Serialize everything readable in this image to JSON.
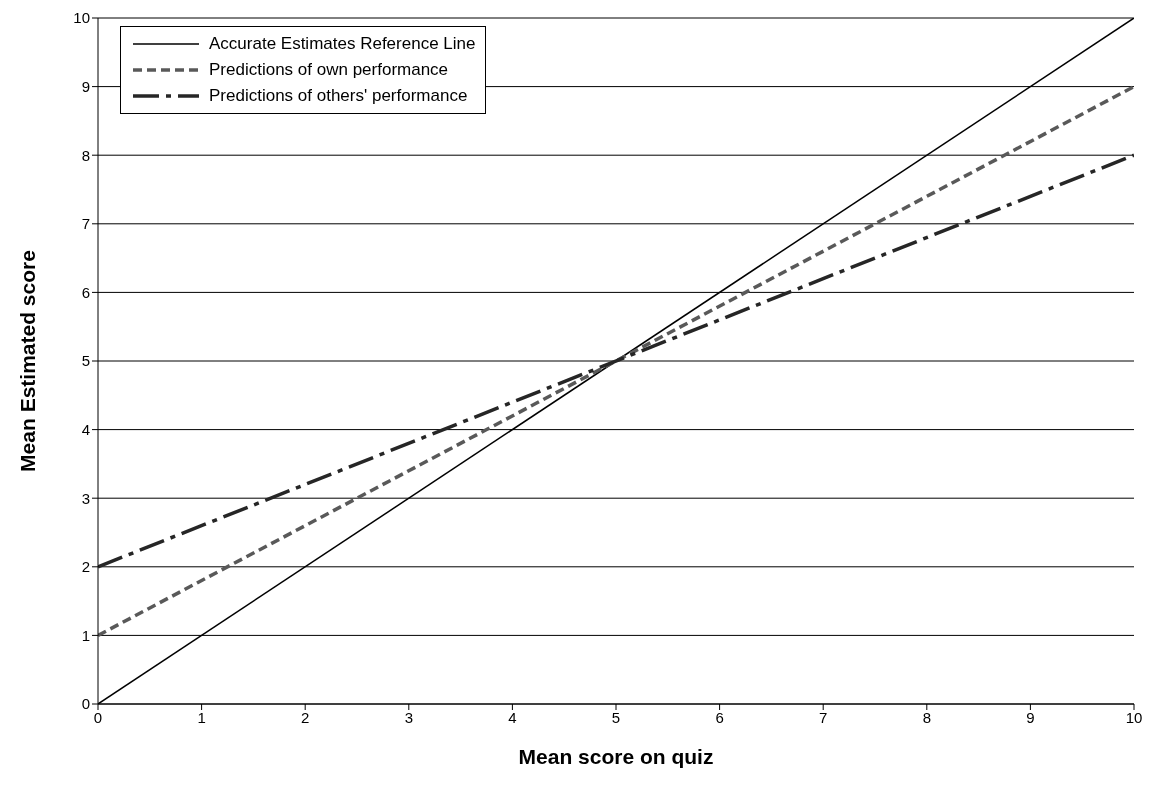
{
  "chart_data": {
    "type": "line",
    "xlabel": "Mean score on quiz",
    "ylabel": "Mean Estimated score",
    "xlim": [
      0,
      10
    ],
    "ylim": [
      0,
      10
    ],
    "xticks": [
      0,
      1,
      2,
      3,
      4,
      5,
      6,
      7,
      8,
      9,
      10
    ],
    "yticks": [
      0,
      1,
      2,
      3,
      4,
      5,
      6,
      7,
      8,
      9,
      10
    ],
    "grid": "y",
    "legend": "top left",
    "marker": "none",
    "x": [
      0,
      10
    ],
    "series": [
      {
        "name": "Accurate Estimates Reference Line",
        "color": "#000000",
        "line_style": "solid",
        "values": [
          0,
          10
        ]
      },
      {
        "name": "Predictions of own performance",
        "color": "#595959",
        "line_style": "dashed",
        "values": [
          1,
          9
        ]
      },
      {
        "name": "Predictions of others' performance",
        "color": "#262626",
        "line_style": "dashdot",
        "values": [
          2,
          8
        ]
      }
    ]
  }
}
